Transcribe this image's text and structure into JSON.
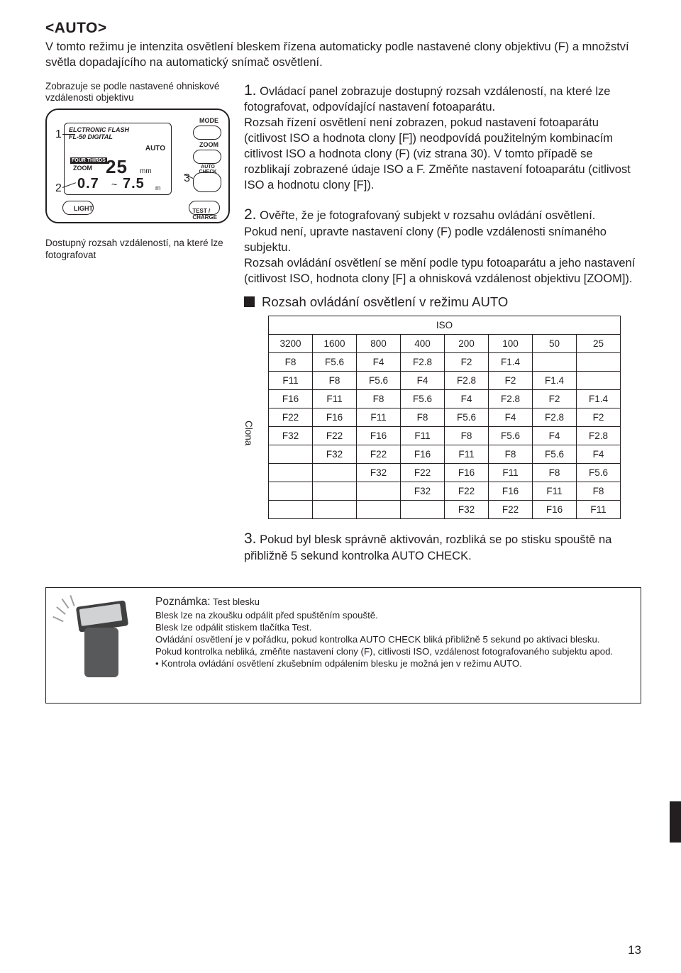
{
  "mode_title": "<AUTO>",
  "intro": "V tomto režimu je intenzita osvětlení bleskem řízena automaticky podle nastavené clony objektivu (F) a množství světla dopadajícího na automatický snímač osvětlení.",
  "left": {
    "caption_top": "Zobrazuje se podle nastavené ohniskové vzdálenosti objektivu",
    "caption_bottom": "Dostupný rozsah vzdáleností, na které lze fotografovat",
    "lcd": {
      "line1": "ELCTRONIC FLASH",
      "line2": "FL-50 DIGITAL",
      "auto": "AUTO",
      "ft": "FOUR THIRDS",
      "zoom_lbl": "ZOOM",
      "mm": "25",
      "mm_unit": "mm",
      "d1": "0.7",
      "tilde": "~",
      "d2": "7.5",
      "m_unit": "m"
    },
    "buttons": {
      "mode": "MODE",
      "zoom": "ZOOM",
      "light": "LIGHT",
      "check": "AUTO\nCHECK",
      "charge": "TEST /\nCHARGE"
    },
    "callouts": {
      "c1": "1",
      "c2": "2",
      "c3": "3"
    }
  },
  "steps": {
    "s1_num": "1.",
    "s1": "Ovládací panel zobrazuje dostupný rozsah vzdáleností, na které lze fotografovat, odpovídající nastavení fotoaparátu.\nRozsah řízení osvětlení není zobrazen, pokud nastavení fotoaparátu (citlivost ISO a hodnota clony [F]) neodpovídá použitelným kombinacím citlivost ISO a hodnota clony (F) (viz strana 30). V tomto případě se rozblikají zobrazené údaje ISO a F. Změňte nastavení fotoaparátu (citlivost ISO a hodnotu clony [F]).",
    "s2_num": "2.",
    "s2": "Ověřte, že je fotografovaný subjekt v rozsahu ovládání osvětlení.\nPokud není, upravte nastavení clony (F) podle vzdálenosti snímaného subjektu.\nRozsah ovládání osvětlení se mění podle typu fotoaparátu a jeho nastavení (citlivost ISO, hodnota clony [F] a ohnisková vzdálenost objektivu [ZOOM]).",
    "s3_num": "3.",
    "s3": "Pokud byl blesk správně aktivován, rozbliká se po stisku spouště na přibližně 5 sekund kontrolka AUTO CHECK."
  },
  "table": {
    "section_title": "Rozsah ovládání osvětlení v režimu AUTO",
    "iso_label": "ISO",
    "side_label": "Clona",
    "iso_cols": [
      "3200",
      "1600",
      "800",
      "400",
      "200",
      "100",
      "50",
      "25"
    ],
    "rows": [
      [
        "F8",
        "F5.6",
        "F4",
        "F2.8",
        "F2",
        "F1.4",
        "",
        ""
      ],
      [
        "F11",
        "F8",
        "F5.6",
        "F4",
        "F2.8",
        "F2",
        "F1.4",
        ""
      ],
      [
        "F16",
        "F11",
        "F8",
        "F5.6",
        "F4",
        "F2.8",
        "F2",
        "F1.4"
      ],
      [
        "F22",
        "F16",
        "F11",
        "F8",
        "F5.6",
        "F4",
        "F2.8",
        "F2"
      ],
      [
        "F32",
        "F22",
        "F16",
        "F11",
        "F8",
        "F5.6",
        "F4",
        "F2.8"
      ],
      [
        "",
        "F32",
        "F22",
        "F16",
        "F11",
        "F8",
        "F5.6",
        "F4"
      ],
      [
        "",
        "",
        "F32",
        "F22",
        "F16",
        "F11",
        "F8",
        "F5.6"
      ],
      [
        "",
        "",
        "",
        "F32",
        "F22",
        "F16",
        "F11",
        "F8"
      ],
      [
        "",
        "",
        "",
        "",
        "F32",
        "F22",
        "F16",
        "F11"
      ]
    ]
  },
  "note": {
    "title": "Poznámka:",
    "subtitle": "Test blesku",
    "lines": [
      "Blesk lze na zkoušku odpálit před spuštěním spouště.",
      "Blesk lze odpálit stiskem tlačítka Test.",
      "Ovládání osvětlení je v pořádku, pokud kontrolka AUTO CHECK bliká přibližně 5 sekund po aktivaci blesku.",
      "Pokud kontrolka nebliká, změňte nastavení clony (F), citlivosti ISO, vzdálenost fotografovaného subjektu apod."
    ],
    "bullet": "• Kontrola ovládání osvětlení zkušebním odpálením blesku je možná jen v režimu AUTO."
  },
  "page_number": "13"
}
